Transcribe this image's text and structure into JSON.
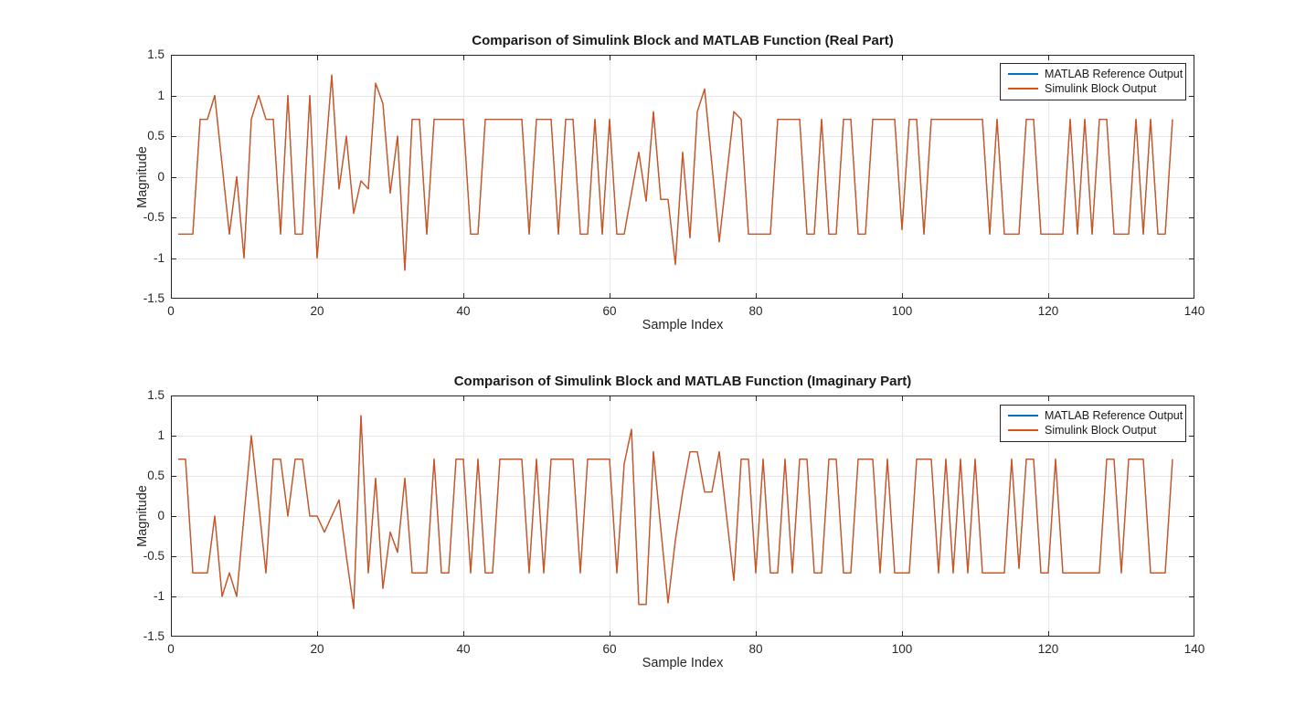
{
  "figure": {
    "background": "#ffffff"
  },
  "chart_data": [
    {
      "type": "line",
      "title": "Comparison of Simulink Block and MATLAB Function (Real Part)",
      "xlabel": "Sample Index",
      "ylabel": "Magnitude",
      "xlim": [
        0,
        140
      ],
      "ylim": [
        -1.5,
        1.5
      ],
      "xticks": [
        0,
        20,
        40,
        60,
        80,
        100,
        120,
        140
      ],
      "yticks": [
        -1.5,
        -1,
        -0.5,
        0,
        0.5,
        1,
        1.5
      ],
      "grid": true,
      "legend_position": "northeast",
      "x_start": 1,
      "x_step": 1,
      "note": "Both series overlap exactly; only the orange Simulink trace is visible on top.",
      "series": [
        {
          "name": "MATLAB Reference Output",
          "color": "#0072BD",
          "values": [
            -0.7071,
            -0.7071,
            -0.7071,
            0.7071,
            0.7071,
            1.0,
            0.15,
            -0.7071,
            0.0,
            -1.0,
            0.7071,
            1.0,
            0.7071,
            0.7071,
            -0.7071,
            1.0,
            -0.7071,
            -0.7071,
            1.0,
            -1.0,
            0.1,
            1.25,
            -0.15,
            0.5,
            -0.45,
            -0.05,
            -0.15,
            1.15,
            0.9,
            -0.2,
            0.5,
            -1.15,
            0.7071,
            0.7071,
            -0.7071,
            0.7071,
            0.7071,
            0.7071,
            0.7071,
            0.7071,
            -0.7071,
            -0.7071,
            0.7071,
            0.7071,
            0.7071,
            0.7071,
            0.7071,
            0.7071,
            -0.7071,
            0.7071,
            0.7071,
            0.7071,
            -0.7071,
            0.7071,
            0.7071,
            -0.7071,
            -0.7071,
            0.7071,
            -0.7071,
            0.7071,
            -0.7071,
            -0.7071,
            -0.2,
            0.3,
            -0.3,
            0.8,
            -0.28,
            -0.28,
            -1.08,
            0.3,
            -0.75,
            0.8,
            1.08,
            0.15,
            -0.8,
            0.0,
            0.8,
            0.7071,
            -0.7071,
            -0.7071,
            -0.7071,
            -0.7071,
            0.7071,
            0.7071,
            0.7071,
            0.7071,
            -0.7071,
            -0.7071,
            0.7071,
            -0.7071,
            -0.7071,
            0.7071,
            0.7071,
            -0.7071,
            -0.7071,
            0.7071,
            0.7071,
            0.7071,
            0.7071,
            -0.65,
            0.7071,
            0.7071,
            -0.7071,
            0.7071,
            0.7071,
            0.7071,
            0.7071,
            0.7071,
            0.7071,
            0.7071,
            0.7071,
            -0.7071,
            0.7071,
            -0.7071,
            -0.7071,
            -0.7071,
            0.7071,
            0.7071,
            -0.7071,
            -0.7071,
            -0.7071,
            -0.7071,
            0.7071,
            -0.7071,
            0.7071,
            -0.7071,
            0.7071,
            0.7071,
            -0.7071,
            -0.7071,
            -0.7071,
            0.7071,
            -0.7071,
            0.7071,
            -0.7071,
            -0.7071,
            0.7071
          ]
        },
        {
          "name": "Simulink Block Output",
          "color": "#D95319",
          "values": [
            -0.7071,
            -0.7071,
            -0.7071,
            0.7071,
            0.7071,
            1.0,
            0.15,
            -0.7071,
            0.0,
            -1.0,
            0.7071,
            1.0,
            0.7071,
            0.7071,
            -0.7071,
            1.0,
            -0.7071,
            -0.7071,
            1.0,
            -1.0,
            0.1,
            1.25,
            -0.15,
            0.5,
            -0.45,
            -0.05,
            -0.15,
            1.15,
            0.9,
            -0.2,
            0.5,
            -1.15,
            0.7071,
            0.7071,
            -0.7071,
            0.7071,
            0.7071,
            0.7071,
            0.7071,
            0.7071,
            -0.7071,
            -0.7071,
            0.7071,
            0.7071,
            0.7071,
            0.7071,
            0.7071,
            0.7071,
            -0.7071,
            0.7071,
            0.7071,
            0.7071,
            -0.7071,
            0.7071,
            0.7071,
            -0.7071,
            -0.7071,
            0.7071,
            -0.7071,
            0.7071,
            -0.7071,
            -0.7071,
            -0.2,
            0.3,
            -0.3,
            0.8,
            -0.28,
            -0.28,
            -1.08,
            0.3,
            -0.75,
            0.8,
            1.08,
            0.15,
            -0.8,
            0.0,
            0.8,
            0.7071,
            -0.7071,
            -0.7071,
            -0.7071,
            -0.7071,
            0.7071,
            0.7071,
            0.7071,
            0.7071,
            -0.7071,
            -0.7071,
            0.7071,
            -0.7071,
            -0.7071,
            0.7071,
            0.7071,
            -0.7071,
            -0.7071,
            0.7071,
            0.7071,
            0.7071,
            0.7071,
            -0.65,
            0.7071,
            0.7071,
            -0.7071,
            0.7071,
            0.7071,
            0.7071,
            0.7071,
            0.7071,
            0.7071,
            0.7071,
            0.7071,
            -0.7071,
            0.7071,
            -0.7071,
            -0.7071,
            -0.7071,
            0.7071,
            0.7071,
            -0.7071,
            -0.7071,
            -0.7071,
            -0.7071,
            0.7071,
            -0.7071,
            0.7071,
            -0.7071,
            0.7071,
            0.7071,
            -0.7071,
            -0.7071,
            -0.7071,
            0.7071,
            -0.7071,
            0.7071,
            -0.7071,
            -0.7071,
            0.7071
          ]
        }
      ]
    },
    {
      "type": "line",
      "title": "Comparison of Simulink Block and MATLAB Function (Imaginary Part)",
      "xlabel": "Sample Index",
      "ylabel": "Magnitude",
      "xlim": [
        0,
        140
      ],
      "ylim": [
        -1.5,
        1.5
      ],
      "xticks": [
        0,
        20,
        40,
        60,
        80,
        100,
        120,
        140
      ],
      "yticks": [
        -1.5,
        -1,
        -0.5,
        0,
        0.5,
        1,
        1.5
      ],
      "grid": true,
      "legend_position": "northeast",
      "x_start": 1,
      "x_step": 1,
      "note": "Both series overlap exactly; only the orange Simulink trace is visible on top.",
      "series": [
        {
          "name": "MATLAB Reference Output",
          "color": "#0072BD",
          "values": [
            0.7071,
            0.7071,
            -0.7071,
            -0.7071,
            -0.7071,
            0.0,
            -1.0,
            -0.7071,
            -1.0,
            0.0,
            1.0,
            0.15,
            -0.7071,
            0.7071,
            0.7071,
            0.0,
            0.7071,
            0.7071,
            0.0,
            0.0,
            -0.2,
            0.0,
            0.2,
            -0.5,
            -1.15,
            1.25,
            -0.7071,
            0.47,
            -0.9,
            -0.2,
            -0.45,
            0.47,
            -0.7071,
            -0.7071,
            -0.7071,
            0.7071,
            -0.7071,
            -0.7071,
            0.7071,
            0.7071,
            -0.7071,
            0.7071,
            -0.7071,
            -0.7071,
            0.7071,
            0.7071,
            0.7071,
            0.7071,
            -0.7071,
            0.7071,
            -0.7071,
            0.7071,
            0.7071,
            0.7071,
            0.7071,
            -0.7071,
            0.7071,
            0.7071,
            0.7071,
            0.7071,
            -0.7071,
            0.65,
            1.08,
            -1.1,
            -1.1,
            0.8,
            -0.15,
            -1.08,
            -0.3,
            0.3,
            0.8,
            0.8,
            0.3,
            0.3,
            0.8,
            0.0,
            -0.8,
            0.7071,
            0.7071,
            -0.7071,
            0.7071,
            -0.7071,
            -0.7071,
            0.7071,
            -0.7071,
            0.7071,
            0.7071,
            -0.7071,
            -0.7071,
            0.7071,
            0.7071,
            -0.7071,
            -0.7071,
            0.7071,
            0.7071,
            0.7071,
            -0.7071,
            0.7071,
            -0.7071,
            -0.7071,
            -0.7071,
            0.7071,
            0.7071,
            0.7071,
            -0.7071,
            0.7071,
            -0.7071,
            0.7071,
            -0.7071,
            0.7071,
            -0.7071,
            -0.7071,
            -0.7071,
            -0.7071,
            0.7071,
            -0.65,
            0.7071,
            0.7071,
            -0.7071,
            -0.7071,
            0.7071,
            -0.7071,
            -0.7071,
            -0.7071,
            -0.7071,
            -0.7071,
            -0.7071,
            0.7071,
            0.7071,
            -0.7071,
            0.7071,
            0.7071,
            0.7071,
            -0.7071,
            -0.7071,
            -0.7071,
            0.7071
          ]
        },
        {
          "name": "Simulink Block Output",
          "color": "#D95319",
          "values": [
            0.7071,
            0.7071,
            -0.7071,
            -0.7071,
            -0.7071,
            0.0,
            -1.0,
            -0.7071,
            -1.0,
            0.0,
            1.0,
            0.15,
            -0.7071,
            0.7071,
            0.7071,
            0.0,
            0.7071,
            0.7071,
            0.0,
            0.0,
            -0.2,
            0.0,
            0.2,
            -0.5,
            -1.15,
            1.25,
            -0.7071,
            0.47,
            -0.9,
            -0.2,
            -0.45,
            0.47,
            -0.7071,
            -0.7071,
            -0.7071,
            0.7071,
            -0.7071,
            -0.7071,
            0.7071,
            0.7071,
            -0.7071,
            0.7071,
            -0.7071,
            -0.7071,
            0.7071,
            0.7071,
            0.7071,
            0.7071,
            -0.7071,
            0.7071,
            -0.7071,
            0.7071,
            0.7071,
            0.7071,
            0.7071,
            -0.7071,
            0.7071,
            0.7071,
            0.7071,
            0.7071,
            -0.7071,
            0.65,
            1.08,
            -1.1,
            -1.1,
            0.8,
            -0.15,
            -1.08,
            -0.3,
            0.3,
            0.8,
            0.8,
            0.3,
            0.3,
            0.8,
            0.0,
            -0.8,
            0.7071,
            0.7071,
            -0.7071,
            0.7071,
            -0.7071,
            -0.7071,
            0.7071,
            -0.7071,
            0.7071,
            0.7071,
            -0.7071,
            -0.7071,
            0.7071,
            0.7071,
            -0.7071,
            -0.7071,
            0.7071,
            0.7071,
            0.7071,
            -0.7071,
            0.7071,
            -0.7071,
            -0.7071,
            -0.7071,
            0.7071,
            0.7071,
            0.7071,
            -0.7071,
            0.7071,
            -0.7071,
            0.7071,
            -0.7071,
            0.7071,
            -0.7071,
            -0.7071,
            -0.7071,
            -0.7071,
            0.7071,
            -0.65,
            0.7071,
            0.7071,
            -0.7071,
            -0.7071,
            0.7071,
            -0.7071,
            -0.7071,
            -0.7071,
            -0.7071,
            -0.7071,
            -0.7071,
            0.7071,
            0.7071,
            -0.7071,
            0.7071,
            0.7071,
            0.7071,
            -0.7071,
            -0.7071,
            -0.7071,
            0.7071
          ]
        }
      ]
    }
  ],
  "style": {
    "grid_color": "#E6E6E6",
    "axis_color": "#262626",
    "background": "#ffffff"
  }
}
